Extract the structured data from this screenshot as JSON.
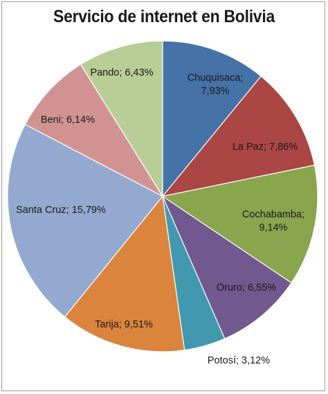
{
  "chart_data": {
    "type": "pie",
    "title": "Servicio de internet en Bolivia",
    "slices": [
      {
        "label": "Chuquisaca",
        "value": 7.93,
        "label_text": [
          "Chuquisaca;",
          "7,93%"
        ],
        "color": "#4572a7"
      },
      {
        "label": "La Paz",
        "value": 7.86,
        "label_text": [
          "La Paz; 7,86%"
        ],
        "color": "#aa4643"
      },
      {
        "label": "Cochabamba",
        "value": 9.14,
        "label_text": [
          "Cochabamba;",
          "9,14%"
        ],
        "color": "#89a54e"
      },
      {
        "label": "Oruro",
        "value": 6.55,
        "label_text": [
          "Oruro; 6,55%"
        ],
        "color": "#71588f"
      },
      {
        "label": "Potosí",
        "value": 3.12,
        "label_text": [
          "Potosí; 3,12%"
        ],
        "color": "#4198af"
      },
      {
        "label": "Tarija",
        "value": 9.51,
        "label_text": [
          "Tarija; 9,51%"
        ],
        "color": "#db843d"
      },
      {
        "label": "Santa Cruz",
        "value": 15.79,
        "label_text": [
          "Santa Cruz; 15,79%"
        ],
        "color": "#93a9cf"
      },
      {
        "label": "Beni",
        "value": 6.14,
        "label_text": [
          "Beni; 6,14%"
        ],
        "color": "#d19392"
      },
      {
        "label": "Pando",
        "value": 6.43,
        "label_text": [
          "Pando; 6,43%"
        ],
        "color": "#b9cd96"
      }
    ]
  }
}
